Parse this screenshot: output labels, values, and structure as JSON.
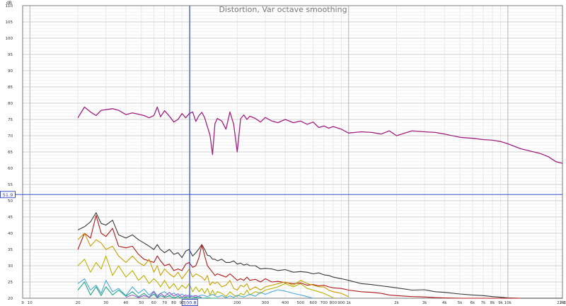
{
  "chart_data": {
    "type": "line",
    "title": "Distortion, Var octave smoothing",
    "xscale": "log",
    "xlim": [
      9,
      22000
    ],
    "ylim": [
      20,
      110
    ],
    "y_unit_label": "dB",
    "x_unit_label": "Hz",
    "grid": true,
    "x_tick_labels": [
      {
        "v": 9,
        "t": "9"
      },
      {
        "v": 10,
        "t": "10"
      },
      {
        "v": 20,
        "t": "20"
      },
      {
        "v": 30,
        "t": "30"
      },
      {
        "v": 40,
        "t": "40"
      },
      {
        "v": 50,
        "t": "50"
      },
      {
        "v": 60,
        "t": "60"
      },
      {
        "v": 70,
        "t": "70"
      },
      {
        "v": 80,
        "t": "80"
      },
      {
        "v": 90,
        "t": "90"
      },
      {
        "v": 200,
        "t": "200"
      },
      {
        "v": 300,
        "t": "300"
      },
      {
        "v": 400,
        "t": "400"
      },
      {
        "v": 500,
        "t": "500"
      },
      {
        "v": 600,
        "t": "600"
      },
      {
        "v": 700,
        "t": "700"
      },
      {
        "v": 800,
        "t": "800"
      },
      {
        "v": 900,
        "t": "900"
      },
      {
        "v": 1000,
        "t": "1k"
      },
      {
        "v": 2000,
        "t": "2k"
      },
      {
        "v": 3000,
        "t": "3k"
      },
      {
        "v": 4000,
        "t": "4k"
      },
      {
        "v": 5000,
        "t": "5k"
      },
      {
        "v": 6000,
        "t": "6k"
      },
      {
        "v": 7000,
        "t": "7k"
      },
      {
        "v": 8000,
        "t": "8k"
      },
      {
        "v": 9000,
        "t": "9k"
      },
      {
        "v": 10000,
        "t": "10k"
      },
      {
        "v": 22000,
        "t": "22.0k"
      }
    ],
    "y_tick_labels": [
      {
        "v": 110,
        "t": "110"
      },
      {
        "v": 105,
        "t": "105"
      },
      {
        "v": 100,
        "t": "100"
      },
      {
        "v": 95,
        "t": "95"
      },
      {
        "v": 90,
        "t": "90"
      },
      {
        "v": 85,
        "t": "85"
      },
      {
        "v": 80,
        "t": "80"
      },
      {
        "v": 75,
        "t": "75"
      },
      {
        "v": 70,
        "t": "70"
      },
      {
        "v": 65,
        "t": "65"
      },
      {
        "v": 60,
        "t": "60"
      },
      {
        "v": 55,
        "t": "55"
      },
      {
        "v": 50,
        "t": "50"
      },
      {
        "v": 45,
        "t": "45"
      },
      {
        "v": 40,
        "t": "40"
      },
      {
        "v": 35,
        "t": "35"
      },
      {
        "v": 30,
        "t": "30"
      },
      {
        "v": 25,
        "t": "25"
      },
      {
        "v": 20,
        "t": "20"
      }
    ],
    "cursor": {
      "x": 100.8,
      "y": 51.9,
      "x_label": "100.8",
      "y_label": "51.9"
    },
    "series": [
      {
        "color": "#a0207f",
        "x": [
          20,
          22,
          24,
          26,
          28,
          30,
          33,
          36,
          40,
          44,
          48,
          52,
          56,
          60,
          63,
          66,
          70,
          75,
          80,
          85,
          90,
          95,
          100,
          105,
          110,
          115,
          120,
          125,
          130,
          135,
          140,
          145,
          150,
          160,
          170,
          180,
          190,
          200,
          210,
          220,
          230,
          240,
          260,
          280,
          300,
          330,
          360,
          400,
          450,
          500,
          550,
          600,
          650,
          700,
          750,
          800,
          900,
          1000,
          1200,
          1400,
          1600,
          1800,
          2000,
          2500,
          3000,
          3500,
          4000,
          5000,
          6000,
          7000,
          8000,
          9000,
          10000,
          12000,
          14000,
          16000,
          18000,
          20000,
          22000
        ],
        "y": [
          75.5,
          78.8,
          77.3,
          76.2,
          77.8,
          78,
          78.3,
          77.8,
          76.5,
          77,
          76.6,
          76.2,
          75.5,
          76.2,
          78.8,
          75.8,
          77.7,
          76,
          74.2,
          75,
          76.8,
          75.5,
          76.8,
          77.3,
          74.4,
          76.2,
          77.2,
          75.5,
          72.7,
          70.2,
          64.2,
          73.7,
          75.3,
          74.5,
          72,
          77.3,
          73.5,
          65,
          75.2,
          76.4,
          75,
          76,
          75.3,
          74.2,
          75.6,
          74.5,
          74,
          75,
          74,
          74.5,
          73.5,
          74.2,
          72.5,
          73,
          72.3,
          72.8,
          72,
          70.8,
          71.2,
          71,
          70.5,
          71.5,
          70,
          71.5,
          71.2,
          71,
          70.5,
          69.5,
          69.2,
          68.8,
          68.6,
          68.2,
          67.5,
          66,
          65.2,
          64.5,
          63.5,
          62,
          61.5
        ]
      },
      {
        "color": "#383838",
        "x": [
          20,
          22,
          24,
          26,
          28,
          30,
          33,
          36,
          40,
          44,
          48,
          52,
          56,
          60,
          63,
          66,
          70,
          75,
          80,
          85,
          90,
          95,
          100,
          105,
          110,
          115,
          120,
          125,
          130,
          135,
          140,
          145,
          150,
          160,
          170,
          180,
          190,
          200,
          210,
          220,
          230,
          240,
          260,
          280,
          300,
          330,
          360,
          400,
          450,
          500,
          550,
          600,
          650,
          700,
          750,
          800,
          900,
          1000,
          1200,
          1400,
          1600,
          1800,
          2000,
          2500,
          3000,
          3500,
          4000,
          5000,
          6000,
          7000,
          8000,
          9000,
          10000,
          12000,
          14000,
          16000,
          18000,
          20000,
          22000
        ],
        "y": [
          41,
          42,
          43.5,
          46.3,
          43,
          42.5,
          44,
          39.5,
          38.5,
          39.5,
          38,
          37,
          36,
          35,
          36.5,
          35,
          34,
          35,
          33.5,
          34,
          32.5,
          34.5,
          35,
          33,
          34,
          35.2,
          36.5,
          35,
          33.2,
          33,
          32,
          32,
          31.5,
          32,
          31,
          31,
          31.5,
          30.5,
          30.8,
          30.2,
          30.5,
          30,
          30,
          29,
          29.2,
          29,
          28.5,
          28.8,
          28,
          28.2,
          28,
          27.5,
          27.8,
          27.2,
          27,
          26.5,
          26,
          25.5,
          24.5,
          24.2,
          23.8,
          23.5,
          23.2,
          22.5,
          22.6,
          22,
          21.8,
          21.3,
          21,
          20.8,
          20.5,
          20.3,
          20.1,
          20,
          20,
          20,
          20,
          20,
          20
        ]
      },
      {
        "color": "#b01818",
        "x": [
          20,
          22,
          24,
          26,
          28,
          30,
          33,
          36,
          40,
          44,
          48,
          52,
          56,
          60,
          63,
          66,
          70,
          75,
          80,
          85,
          90,
          95,
          100,
          105,
          110,
          115,
          120,
          125,
          130,
          135,
          140,
          145,
          150,
          160,
          170,
          180,
          190,
          200,
          210,
          220,
          230,
          240,
          260,
          280,
          300,
          330,
          360,
          400,
          450,
          500,
          550,
          600,
          650,
          700,
          750,
          800,
          900,
          1000,
          1200,
          1400,
          1600,
          1800,
          2000,
          2500,
          3000,
          3500,
          4000,
          5000,
          6000,
          7000,
          8000,
          9000,
          10000,
          12000
        ],
        "y": [
          35,
          40,
          38.5,
          45.5,
          40,
          39,
          41.5,
          36,
          35.5,
          36,
          33.5,
          32,
          31.5,
          31,
          33,
          31.5,
          30,
          30.5,
          28.5,
          29,
          28.5,
          30.5,
          31,
          29.5,
          30,
          32.5,
          36.5,
          33,
          30,
          29,
          28,
          27,
          27.5,
          27,
          26.5,
          27.5,
          26.5,
          25.5,
          26,
          25.5,
          26.5,
          25.5,
          25.8,
          25,
          26,
          25,
          25.2,
          24.8,
          24.5,
          24.7,
          24,
          24.2,
          23.8,
          24,
          23.5,
          23.2,
          23,
          22.5,
          22,
          21.8,
          21.5,
          21,
          20.8,
          20.5,
          20.4,
          20.2,
          20.1,
          20,
          20,
          20,
          20,
          20,
          20,
          20
        ]
      },
      {
        "color": "#c8a000",
        "x": [
          20,
          22,
          24,
          26,
          28,
          30,
          33,
          36,
          40,
          44,
          48,
          52,
          56,
          60,
          63,
          66,
          70,
          75,
          80,
          85,
          90,
          95,
          100,
          105,
          110,
          115,
          120,
          125,
          130,
          135,
          140,
          145,
          150,
          160,
          170,
          180,
          190,
          200,
          210,
          220,
          230,
          240,
          260,
          280,
          300,
          330,
          360,
          400,
          450,
          500,
          550,
          600,
          650,
          700,
          750,
          800,
          900,
          1000
        ],
        "y": [
          38,
          40,
          36,
          38,
          37,
          35,
          36,
          33,
          31,
          33,
          31,
          30,
          32,
          28,
          30,
          27,
          29,
          27.5,
          26.5,
          28,
          26,
          27.5,
          29,
          26.5,
          27.5,
          27,
          26.5,
          25.5,
          27,
          24,
          25,
          24.5,
          25,
          23.5,
          24,
          25.5,
          23,
          22.5,
          24,
          23.5,
          24.5,
          22.5,
          23.5,
          22.5,
          23.5,
          24,
          24.5,
          25,
          24,
          25.5,
          24.5,
          24,
          23.5,
          23.5,
          22.5,
          22,
          21.5,
          20.5
        ]
      },
      {
        "color": "#b8b400",
        "x": [
          20,
          22,
          24,
          26,
          28,
          30,
          33,
          36,
          40,
          44,
          48,
          52,
          56,
          60,
          63,
          66,
          70,
          75,
          80,
          85,
          90,
          95,
          100,
          105,
          110,
          115,
          120,
          125,
          130,
          135,
          140,
          145,
          150,
          160,
          170,
          180,
          190,
          200,
          210,
          220,
          230,
          240,
          260,
          280,
          300,
          330,
          360,
          400,
          450,
          500,
          550,
          600,
          650,
          700,
          750,
          800
        ],
        "y": [
          30,
          32,
          28,
          31,
          29,
          33,
          27,
          30,
          26.5,
          28.5,
          25.5,
          27,
          24.5,
          26,
          25,
          23.5,
          25.5,
          23,
          24.5,
          22.5,
          24,
          23,
          24.5,
          22,
          23.5,
          22,
          23,
          21.5,
          23,
          21,
          22.5,
          21,
          22,
          21.5,
          20.5,
          22,
          21,
          20.5,
          21.5,
          21,
          22.5,
          21,
          22,
          21.5,
          22.5,
          23,
          23.5,
          24.5,
          23.5,
          24.5,
          23,
          22.5,
          22,
          21.5,
          20.8,
          20.2
        ]
      },
      {
        "color": "#4fa8d8",
        "x": [
          20,
          22,
          24,
          26,
          28,
          30,
          33,
          36,
          40,
          44,
          48,
          52,
          56,
          60,
          63,
          66,
          70,
          75,
          80,
          85,
          90,
          95,
          100,
          110,
          120,
          130,
          140,
          150,
          160,
          170,
          180,
          190,
          200,
          220,
          240,
          260,
          280,
          300,
          330,
          360,
          400,
          450,
          500,
          550,
          600
        ],
        "y": [
          24.5,
          26,
          22.5,
          24,
          21.5,
          25.5,
          22,
          23,
          20.8,
          23.5,
          21.5,
          22.8,
          21,
          22.2,
          20.8,
          21.5,
          22,
          20.8,
          21.6,
          20.6,
          21.3,
          20.4,
          21,
          20.3,
          21,
          20.5,
          21.2,
          20.4,
          20.8,
          20.2,
          20.7,
          20.3,
          20.9,
          20.4,
          21.2,
          20.6,
          21.8,
          21.2,
          22,
          22.6,
          22.2,
          21.5,
          21,
          20.5,
          20
        ]
      },
      {
        "color": "#20a880",
        "x": [
          20,
          22,
          24,
          26,
          28,
          30,
          33,
          36,
          40,
          44,
          48,
          52,
          56,
          60,
          63,
          66,
          70,
          75,
          80,
          85,
          90,
          95,
          100,
          110,
          120,
          130,
          140,
          150
        ],
        "y": [
          22.5,
          25,
          21,
          23.5,
          20.8,
          23.5,
          21,
          22.5,
          20.6,
          22,
          20.4,
          21.5,
          20.2,
          21.3,
          20.1,
          20.8,
          20.3,
          20.7,
          20.1,
          20.5,
          20,
          20.3,
          20,
          20.2,
          20,
          20.1,
          20,
          20
        ]
      },
      {
        "color": "#9b59d0",
        "x": [
          40,
          44,
          48,
          52,
          56,
          60,
          63,
          66,
          70,
          75,
          80,
          85,
          90,
          95,
          100,
          110,
          120
        ],
        "y": [
          20.3,
          21,
          20.2,
          20.8,
          20.3,
          22,
          20.3,
          21.5,
          20.5,
          21.8,
          20.6,
          21.4,
          20.3,
          21,
          20.4,
          20.8,
          20.2
        ]
      }
    ]
  }
}
